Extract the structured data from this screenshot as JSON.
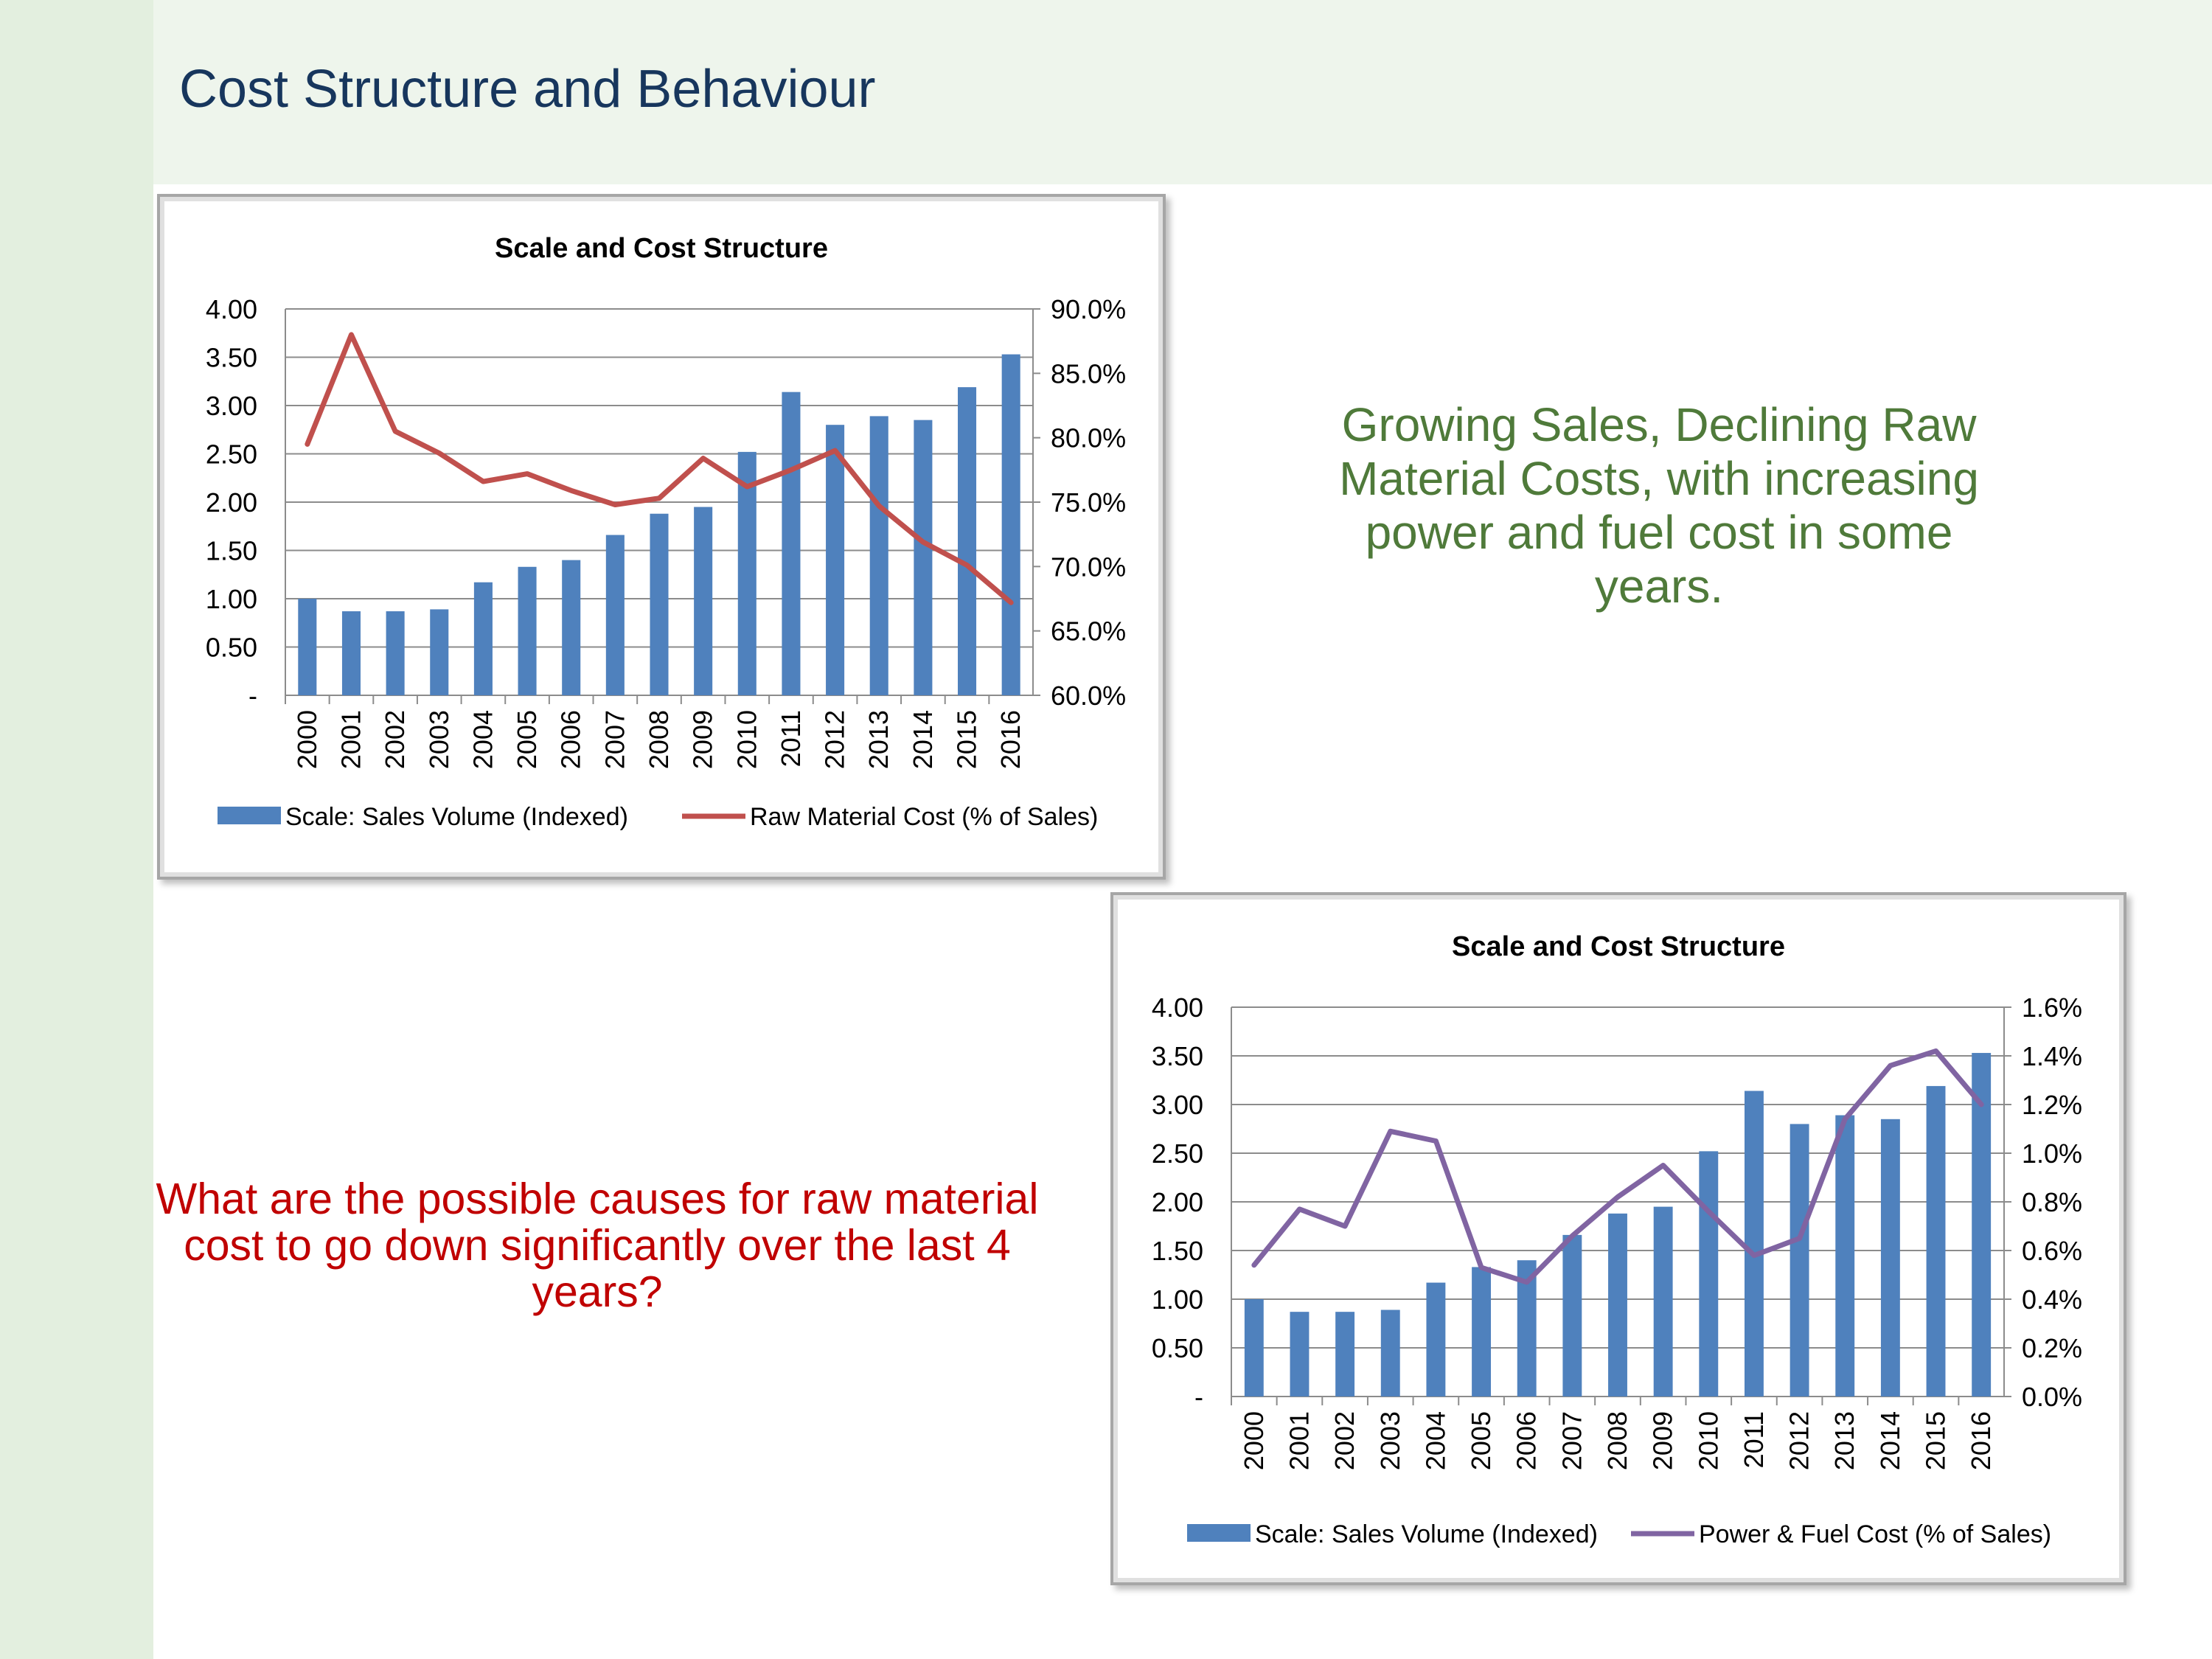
{
  "slide": {
    "title": "Cost Structure and Behaviour",
    "callout_green": "Growing Sales, Declining Raw Material Costs, with increasing power and fuel cost in some years.",
    "callout_red": "What are the possible causes for raw material cost to go down significantly over the last 4 years?"
  },
  "colors": {
    "bar": "#4f81bd",
    "raw_material_line": "#c0504d",
    "power_fuel_line": "#8064a2",
    "green_text": "#4f7a3a",
    "red_text": "#c00000",
    "title_text": "#17365d"
  },
  "chart_data": [
    {
      "type": "bar+line",
      "title": "Scale and Cost Structure",
      "categories": [
        "2000",
        "2001",
        "2002",
        "2003",
        "2004",
        "2005",
        "2006",
        "2007",
        "2008",
        "2009",
        "2010",
        "2011",
        "2012",
        "2013",
        "2014",
        "2015",
        "2016"
      ],
      "series": [
        {
          "name": "Scale: Sales Volume (Indexed)",
          "type": "bar",
          "axis": "left",
          "values": [
            1.0,
            0.87,
            0.87,
            0.89,
            1.17,
            1.33,
            1.4,
            1.66,
            1.88,
            1.95,
            2.52,
            3.14,
            2.8,
            2.89,
            2.85,
            3.19,
            3.53
          ]
        },
        {
          "name": "Raw Material Cost (% of Sales)",
          "type": "line",
          "axis": "right",
          "values": [
            79.5,
            88.0,
            80.5,
            78.8,
            76.6,
            77.2,
            75.9,
            74.8,
            75.3,
            78.4,
            76.2,
            77.5,
            79.0,
            74.7,
            71.9,
            70.1,
            67.2
          ]
        }
      ],
      "left_axis": {
        "min": 0,
        "max": 4,
        "step": 0.5,
        "tick_labels": [
          "-",
          "0.50",
          "1.00",
          "1.50",
          "2.00",
          "2.50",
          "3.00",
          "3.50",
          "4.00"
        ]
      },
      "right_axis": {
        "min": 60,
        "max": 90,
        "step": 5,
        "tick_labels": [
          "60.0%",
          "65.0%",
          "70.0%",
          "75.0%",
          "80.0%",
          "85.0%",
          "90.0%"
        ]
      },
      "grid": true,
      "legend_position": "bottom"
    },
    {
      "type": "bar+line",
      "title": "Scale and Cost Structure",
      "categories": [
        "2000",
        "2001",
        "2002",
        "2003",
        "2004",
        "2005",
        "2006",
        "2007",
        "2008",
        "2009",
        "2010",
        "2011",
        "2012",
        "2013",
        "2014",
        "2015",
        "2016"
      ],
      "series": [
        {
          "name": "Scale: Sales Volume (Indexed)",
          "type": "bar",
          "axis": "left",
          "values": [
            1.0,
            0.87,
            0.87,
            0.89,
            1.17,
            1.33,
            1.4,
            1.66,
            1.88,
            1.95,
            2.52,
            3.14,
            2.8,
            2.89,
            2.85,
            3.19,
            3.53
          ]
        },
        {
          "name": "Power & Fuel Cost (% of Sales)",
          "type": "line",
          "axis": "right",
          "values": [
            0.54,
            0.77,
            0.7,
            1.09,
            1.05,
            0.53,
            0.47,
            0.66,
            0.82,
            0.95,
            0.76,
            0.58,
            0.65,
            1.14,
            1.36,
            1.42,
            1.2
          ]
        }
      ],
      "left_axis": {
        "min": 0,
        "max": 4,
        "step": 0.5,
        "tick_labels": [
          "-",
          "0.50",
          "1.00",
          "1.50",
          "2.00",
          "2.50",
          "3.00",
          "3.50",
          "4.00"
        ]
      },
      "right_axis": {
        "min": 0,
        "max": 1.6,
        "step": 0.2,
        "tick_labels": [
          "0.0%",
          "0.2%",
          "0.4%",
          "0.6%",
          "0.8%",
          "1.0%",
          "1.2%",
          "1.4%",
          "1.6%"
        ]
      },
      "grid": true,
      "legend_position": "bottom"
    }
  ]
}
